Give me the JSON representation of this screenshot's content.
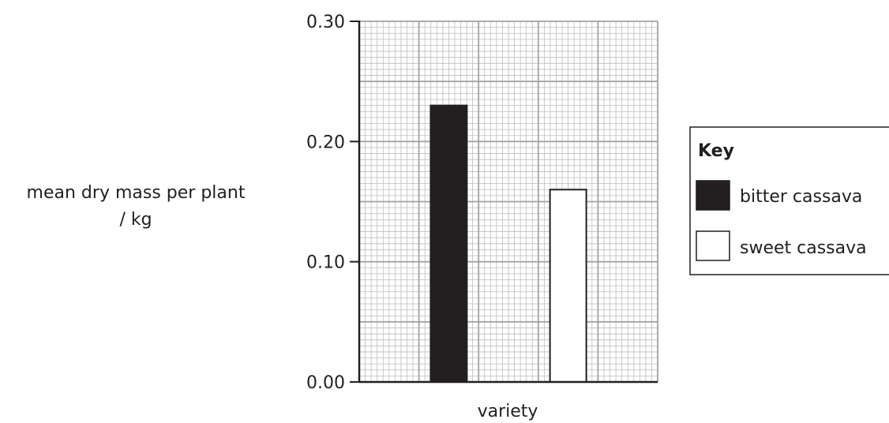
{
  "chart_data": {
    "type": "bar",
    "title": "",
    "xlabel": "variety",
    "ylabel_lines": [
      "mean dry mass per plant",
      "/ kg"
    ],
    "ylim": [
      0,
      0.3
    ],
    "yticks": [
      "0.00",
      "0.10",
      "0.20",
      "0.30"
    ],
    "grid": true,
    "legend_placement": "right",
    "legend_title": "Key",
    "categories": [
      "bitter cassava",
      "sweet cassava"
    ],
    "values": [
      0.23,
      0.16
    ],
    "colors": [
      "#231f20",
      "#ffffff"
    ]
  }
}
